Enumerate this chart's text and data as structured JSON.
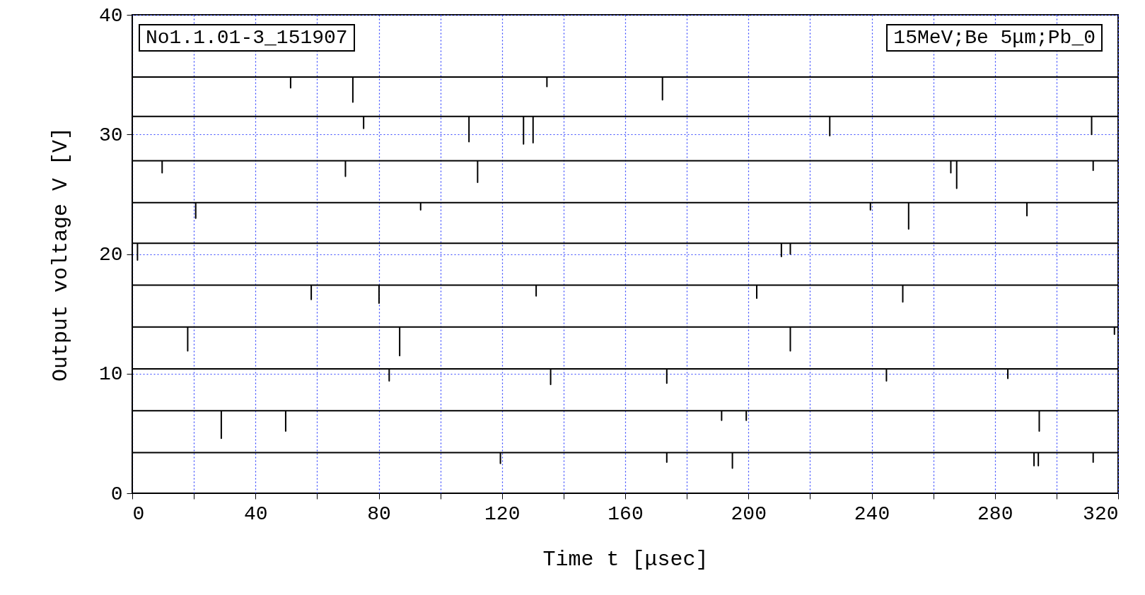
{
  "chart_data": {
    "type": "line",
    "xlabel": "Time t [μsec]",
    "ylabel": "Output voltage V [V]",
    "xlim": [
      0,
      320
    ],
    "ylim": [
      0,
      40
    ],
    "xticks": [
      0,
      {
        "value": 20,
        "label": null
      },
      40,
      {
        "value": 60,
        "label": null
      },
      80,
      {
        "value": 100,
        "label": null
      },
      120,
      {
        "value": 140,
        "label": null
      },
      160,
      {
        "value": 180,
        "label": null
      },
      200,
      {
        "value": 220,
        "label": null
      },
      240,
      {
        "value": 260,
        "label": null
      },
      280,
      {
        "value": 300,
        "label": null
      },
      320
    ],
    "yticks": [
      0,
      10,
      20,
      30,
      40
    ],
    "grid": true,
    "legend": false,
    "marker": "none",
    "line_style": "solid",
    "annotations": [
      "No1.1.01-3_151907",
      "15MeV;Be 5μm;Pb_0"
    ],
    "series": [
      {
        "color": "#000000",
        "x": [
          0,
          51.4,
          51.4,
          51.4,
          71.6,
          71.6,
          71.6,
          134.6,
          134.6,
          134.6,
          172.1,
          172.1,
          172.1,
          320
        ],
        "values": [
          34.8,
          34.8,
          33.9,
          34.8,
          34.8,
          32.7,
          34.8,
          34.8,
          34.0,
          34.8,
          34.8,
          32.9,
          34.8,
          34.8
        ]
      },
      {
        "color": "#000000",
        "x": [
          0,
          75.1,
          75.1,
          75.1,
          109.3,
          109.3,
          109.3,
          127.0,
          127.0,
          127.0,
          130.1,
          130.1,
          130.1,
          226.4,
          226.4,
          226.4,
          311.4,
          311.4,
          311.4,
          320
        ],
        "values": [
          31.5,
          31.5,
          30.5,
          31.5,
          31.5,
          29.4,
          31.5,
          31.5,
          29.2,
          31.5,
          31.5,
          29.3,
          31.5,
          31.5,
          29.9,
          31.5,
          31.5,
          30.0,
          31.5,
          31.5
        ]
      },
      {
        "color": "#000000",
        "x": [
          0,
          9.7,
          9.7,
          9.7,
          69.2,
          69.2,
          69.2,
          112.1,
          112.1,
          112.1,
          265.7,
          265.7,
          265.7,
          267.6,
          267.6,
          267.6,
          311.9,
          311.9,
          311.9,
          320
        ],
        "values": [
          27.8,
          27.8,
          26.8,
          27.8,
          27.8,
          26.5,
          27.8,
          27.8,
          26.0,
          27.8,
          27.8,
          26.8,
          27.8,
          27.8,
          25.5,
          27.8,
          27.8,
          27.0,
          27.8,
          27.8
        ]
      },
      {
        "color": "#000000",
        "x": [
          0,
          20.6,
          20.6,
          20.6,
          93.6,
          93.6,
          93.6,
          239.6,
          239.6,
          239.6,
          252.0,
          252.0,
          252.0,
          290.4,
          290.4,
          290.4,
          320
        ],
        "values": [
          24.3,
          24.3,
          23.0,
          24.3,
          24.3,
          23.7,
          24.3,
          24.3,
          23.7,
          24.3,
          24.3,
          22.1,
          24.3,
          24.3,
          23.2,
          24.3,
          24.3
        ]
      },
      {
        "color": "#000000",
        "x": [
          0,
          1.7,
          1.7,
          1.7,
          210.7,
          210.7,
          210.7,
          213.6,
          213.6,
          213.6,
          320
        ],
        "values": [
          20.9,
          20.9,
          19.5,
          20.9,
          20.9,
          19.8,
          20.9,
          20.9,
          20.0,
          20.9,
          20.9
        ]
      },
      {
        "color": "#000000",
        "x": [
          0,
          58.1,
          58.1,
          58.1,
          80.1,
          80.1,
          80.1,
          131.1,
          131.1,
          131.1,
          202.7,
          202.7,
          202.7,
          250.1,
          250.1,
          250.1,
          320
        ],
        "values": [
          17.4,
          17.4,
          16.2,
          17.4,
          17.4,
          15.9,
          17.4,
          17.4,
          16.5,
          17.4,
          17.4,
          16.3,
          17.4,
          17.4,
          16.0,
          17.4,
          17.4
        ]
      },
      {
        "color": "#000000",
        "x": [
          0,
          18.0,
          18.0,
          18.0,
          86.8,
          86.8,
          86.8,
          213.6,
          213.6,
          213.6,
          318.8,
          318.8,
          318.8,
          320
        ],
        "values": [
          13.9,
          13.9,
          11.9,
          13.9,
          13.9,
          11.5,
          13.9,
          13.9,
          11.9,
          13.9,
          13.9,
          13.3,
          13.9,
          13.9
        ]
      },
      {
        "color": "#000000",
        "x": [
          0,
          83.4,
          83.4,
          83.4,
          135.8,
          135.8,
          135.8,
          173.5,
          173.5,
          173.5,
          244.8,
          244.8,
          244.8,
          284.2,
          284.2,
          284.2,
          320
        ],
        "values": [
          10.4,
          10.4,
          9.4,
          10.4,
          10.4,
          9.1,
          10.4,
          10.4,
          9.2,
          10.4,
          10.4,
          9.4,
          10.4,
          10.4,
          9.6,
          10.4,
          10.4
        ]
      },
      {
        "color": "#000000",
        "x": [
          0,
          28.9,
          28.9,
          28.9,
          49.8,
          49.8,
          49.8,
          191.3,
          191.3,
          191.3,
          199.3,
          199.3,
          199.3,
          294.4,
          294.4,
          294.4,
          320
        ],
        "values": [
          6.9,
          6.9,
          4.6,
          6.9,
          6.9,
          5.2,
          6.9,
          6.9,
          6.1,
          6.9,
          6.9,
          6.1,
          6.9,
          6.9,
          5.2,
          6.9,
          6.9
        ]
      },
      {
        "color": "#000000",
        "x": [
          0,
          119.5,
          119.5,
          119.5,
          173.5,
          173.5,
          173.5,
          194.8,
          194.8,
          194.8,
          292.7,
          292.7,
          292.7,
          294.1,
          294.1,
          294.1,
          311.9,
          311.9,
          311.9,
          320
        ],
        "values": [
          3.4,
          3.4,
          2.5,
          3.4,
          3.4,
          2.6,
          3.4,
          3.4,
          2.1,
          3.4,
          3.4,
          2.3,
          3.4,
          3.4,
          2.3,
          3.4,
          3.4,
          2.6,
          3.4,
          3.4
        ]
      }
    ]
  }
}
